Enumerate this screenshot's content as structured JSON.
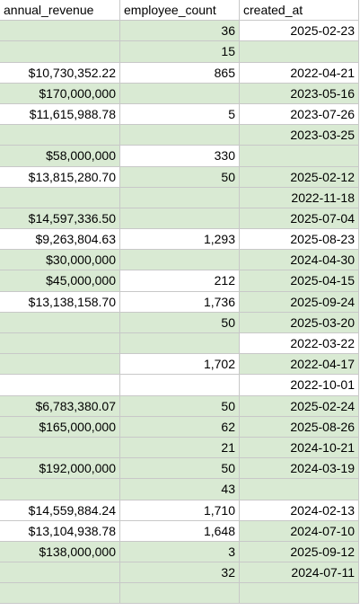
{
  "headers": [
    "annual_revenue",
    "employee_count",
    "created_at"
  ],
  "rows": [
    {
      "r": "",
      "e": "36",
      "d": "2025-02-23",
      "bg": [
        "g",
        "g",
        "w"
      ]
    },
    {
      "r": "",
      "e": "15",
      "d": "",
      "bg": [
        "g",
        "g",
        "g"
      ]
    },
    {
      "r": "$10,730,352.22",
      "e": "865",
      "d": "2022-04-21",
      "bg": [
        "w",
        "w",
        "w"
      ]
    },
    {
      "r": "$170,000,000",
      "e": "",
      "d": "2023-05-16",
      "bg": [
        "g",
        "g",
        "g"
      ]
    },
    {
      "r": "$11,615,988.78",
      "e": "5",
      "d": "2023-07-26",
      "bg": [
        "w",
        "w",
        "w"
      ]
    },
    {
      "r": "",
      "e": "",
      "d": "2023-03-25",
      "bg": [
        "g",
        "g",
        "g"
      ]
    },
    {
      "r": "$58,000,000",
      "e": "330",
      "d": "",
      "bg": [
        "g",
        "w",
        "g"
      ]
    },
    {
      "r": "$13,815,280.70",
      "e": "50",
      "d": "2025-02-12",
      "bg": [
        "w",
        "g",
        "g"
      ]
    },
    {
      "r": "",
      "e": "",
      "d": "2022-11-18",
      "bg": [
        "g",
        "g",
        "g"
      ]
    },
    {
      "r": "$14,597,336.50",
      "e": "",
      "d": "2025-07-04",
      "bg": [
        "g",
        "g",
        "g"
      ]
    },
    {
      "r": "$9,263,804.63",
      "e": "1,293",
      "d": "2025-08-23",
      "bg": [
        "w",
        "w",
        "w"
      ]
    },
    {
      "r": "$30,000,000",
      "e": "",
      "d": "2024-04-30",
      "bg": [
        "g",
        "g",
        "g"
      ]
    },
    {
      "r": "$45,000,000",
      "e": "212",
      "d": "2025-04-15",
      "bg": [
        "g",
        "w",
        "g"
      ]
    },
    {
      "r": "$13,138,158.70",
      "e": "1,736",
      "d": "2025-09-24",
      "bg": [
        "w",
        "w",
        "g"
      ]
    },
    {
      "r": "",
      "e": "50",
      "d": "2025-03-20",
      "bg": [
        "g",
        "g",
        "g"
      ]
    },
    {
      "r": "",
      "e": "",
      "d": "2022-03-22",
      "bg": [
        "g",
        "g",
        "w"
      ]
    },
    {
      "r": "",
      "e": "1,702",
      "d": "2022-04-17",
      "bg": [
        "g",
        "w",
        "g"
      ]
    },
    {
      "r": "",
      "e": "",
      "d": "2022-10-01",
      "bg": [
        "w",
        "w",
        "w"
      ]
    },
    {
      "r": "$6,783,380.07",
      "e": "50",
      "d": "2025-02-24",
      "bg": [
        "g",
        "g",
        "g"
      ]
    },
    {
      "r": "$165,000,000",
      "e": "62",
      "d": "2025-08-26",
      "bg": [
        "g",
        "g",
        "g"
      ]
    },
    {
      "r": "",
      "e": "21",
      "d": "2024-10-21",
      "bg": [
        "g",
        "g",
        "g"
      ]
    },
    {
      "r": "$192,000,000",
      "e": "50",
      "d": "2024-03-19",
      "bg": [
        "g",
        "g",
        "g"
      ]
    },
    {
      "r": "",
      "e": "43",
      "d": "",
      "bg": [
        "g",
        "g",
        "g"
      ]
    },
    {
      "r": "$14,559,884.24",
      "e": "1,710",
      "d": "2024-02-13",
      "bg": [
        "w",
        "w",
        "w"
      ]
    },
    {
      "r": "$13,104,938.78",
      "e": "1,648",
      "d": "2024-07-10",
      "bg": [
        "w",
        "w",
        "g"
      ]
    },
    {
      "r": "$138,000,000",
      "e": "3",
      "d": "2025-09-12",
      "bg": [
        "g",
        "g",
        "g"
      ]
    },
    {
      "r": "",
      "e": "32",
      "d": "2024-07-11",
      "bg": [
        "g",
        "g",
        "g"
      ]
    },
    {
      "r": "",
      "e": "",
      "d": "",
      "bg": [
        "g",
        "g",
        "g"
      ]
    }
  ]
}
